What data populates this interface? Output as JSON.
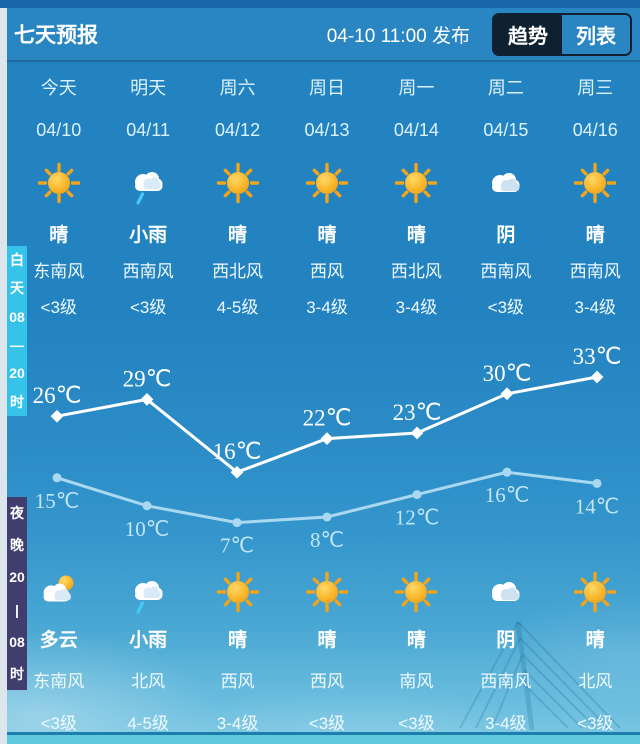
{
  "header": {
    "title": "七天预报",
    "publish_time": "04-10 11:00 发布",
    "tabs": [
      {
        "label": "趋势",
        "active": true
      },
      {
        "label": "列表",
        "active": false
      }
    ]
  },
  "side_labels": {
    "day": {
      "text": "白天08—20时",
      "segments": [
        "白",
        "天",
        "08",
        "—",
        "20",
        "时"
      ]
    },
    "night": {
      "text": "夜晚20—08时",
      "segments": [
        "夜",
        "晚",
        "20",
        "|",
        "08",
        "时"
      ]
    }
  },
  "days": [
    {
      "name": "今天",
      "date": "04/10",
      "day_icon": "sunny",
      "day_weather": "晴",
      "day_wind": "东南风",
      "day_level": "<3级",
      "night_icon": "partly-cloudy",
      "night_weather": "多云",
      "night_wind": "东南风",
      "night_level": "<3级"
    },
    {
      "name": "明天",
      "date": "04/11",
      "day_icon": "light-rain",
      "day_weather": "小雨",
      "day_wind": "西南风",
      "day_level": "<3级",
      "night_icon": "light-rain",
      "night_weather": "小雨",
      "night_wind": "北风",
      "night_level": "4-5级"
    },
    {
      "name": "周六",
      "date": "04/12",
      "day_icon": "sunny",
      "day_weather": "晴",
      "day_wind": "西北风",
      "day_level": "4-5级",
      "night_icon": "sunny",
      "night_weather": "晴",
      "night_wind": "西风",
      "night_level": "3-4级"
    },
    {
      "name": "周日",
      "date": "04/13",
      "day_icon": "sunny",
      "day_weather": "晴",
      "day_wind": "西风",
      "day_level": "3-4级",
      "night_icon": "sunny",
      "night_weather": "晴",
      "night_wind": "西风",
      "night_level": "<3级"
    },
    {
      "name": "周一",
      "date": "04/14",
      "day_icon": "sunny",
      "day_weather": "晴",
      "day_wind": "西北风",
      "day_level": "3-4级",
      "night_icon": "sunny",
      "night_weather": "晴",
      "night_wind": "南风",
      "night_level": "<3级"
    },
    {
      "name": "周二",
      "date": "04/15",
      "day_icon": "overcast",
      "day_weather": "阴",
      "day_wind": "西南风",
      "day_level": "<3级",
      "night_icon": "overcast",
      "night_weather": "阴",
      "night_wind": "西南风",
      "night_level": "3-4级"
    },
    {
      "name": "周三",
      "date": "04/16",
      "day_icon": "sunny",
      "day_weather": "晴",
      "day_wind": "西南风",
      "day_level": "3-4级",
      "night_icon": "sunny",
      "night_weather": "晴",
      "night_wind": "北风",
      "night_level": "<3级"
    }
  ],
  "chart_data": {
    "type": "line",
    "categories": [
      "04/10",
      "04/11",
      "04/12",
      "04/13",
      "04/14",
      "04/15",
      "04/16"
    ],
    "series": [
      {
        "name": "白天气温",
        "values": [
          26,
          29,
          16,
          22,
          23,
          30,
          33
        ],
        "color": "#ffffff",
        "marker": "diamond"
      },
      {
        "name": "夜间气温",
        "values": [
          15,
          10,
          7,
          8,
          12,
          16,
          14
        ],
        "color": "#a9d8f0",
        "marker": "circle"
      }
    ],
    "unit": "℃",
    "ylim": [
      5,
      35
    ],
    "grid": false,
    "legend": "none",
    "title": ""
  },
  "colors": {
    "top_strip": "#1a67ad",
    "header_bg": "#2a86c2",
    "tab_active_bg": "#0e2130",
    "day_side_label_bg": "#36c3e9",
    "night_side_label_bg": "#3f3e6e",
    "bottom_strip": "#5fc9de",
    "sun": "#f2a41b",
    "rain_streak": "#46c9f6",
    "day_line": "#ffffff",
    "night_line": "#a9d8f0"
  }
}
